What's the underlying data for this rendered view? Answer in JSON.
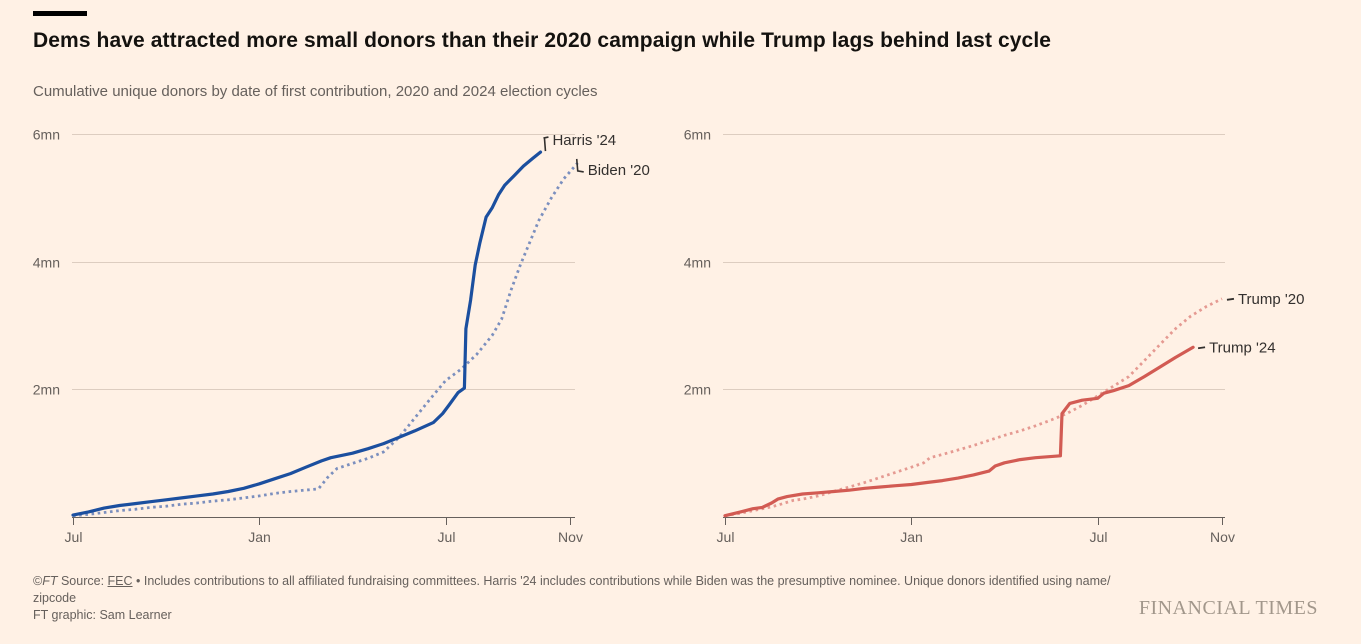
{
  "header": {
    "title": "Dems have attracted more small donors than their 2020 campaign while Trump lags behind last cycle",
    "subtitle": "Cumulative unique donors by date of first contribution, 2020 and 2024 election cycles"
  },
  "colors": {
    "background": "#fff1e5",
    "gridline": "#ddcdc0",
    "axis": "#66605c",
    "axis_text": "#66605c",
    "annotation_text": "#33302e",
    "harris_24": "#1b4f9f",
    "biden_20": "#7b8fbe",
    "trump_24": "#d25b53",
    "trump_20": "#e59a92",
    "wordmark": "#a2978b"
  },
  "chart_data": [
    {
      "type": "line",
      "region": "Democrats panel",
      "x_unit": "months since July of year before election (Jul 2023 / Jul 2019 aligned)",
      "x_ticks": [
        {
          "label": "Jul",
          "month": 0
        },
        {
          "label": "Jan",
          "month": 6
        },
        {
          "label": "Jul",
          "month": 12
        },
        {
          "label": "Nov",
          "month": 16
        }
      ],
      "y_ticks": [
        {
          "label": "2mn",
          "value": 2
        },
        {
          "label": "4mn",
          "value": 4
        },
        {
          "label": "6mn",
          "value": 6
        }
      ],
      "y_range": [
        0,
        6.2
      ],
      "grid": true,
      "legend_position": "end-of-line labels",
      "series": [
        {
          "name": "Harris '24",
          "style": "solid",
          "color": "#1b4f9f",
          "unit": "million unique donors",
          "points": [
            [
              0,
              0.03
            ],
            [
              0.5,
              0.08
            ],
            [
              1,
              0.14
            ],
            [
              1.5,
              0.18
            ],
            [
              2,
              0.21
            ],
            [
              2.5,
              0.24
            ],
            [
              3,
              0.27
            ],
            [
              3.5,
              0.3
            ],
            [
              4,
              0.33
            ],
            [
              4.5,
              0.36
            ],
            [
              5,
              0.4
            ],
            [
              5.5,
              0.45
            ],
            [
              6,
              0.52
            ],
            [
              6.5,
              0.6
            ],
            [
              7,
              0.68
            ],
            [
              7.5,
              0.78
            ],
            [
              8,
              0.88
            ],
            [
              8.3,
              0.93
            ],
            [
              9,
              1.0
            ],
            [
              9.5,
              1.07
            ],
            [
              10,
              1.15
            ],
            [
              10.5,
              1.25
            ],
            [
              11,
              1.35
            ],
            [
              11.6,
              1.48
            ],
            [
              11.9,
              1.62
            ],
            [
              12.1,
              1.75
            ],
            [
              12.4,
              1.95
            ],
            [
              12.6,
              2.02
            ],
            [
              12.65,
              2.95
            ],
            [
              12.8,
              3.4
            ],
            [
              12.95,
              3.95
            ],
            [
              13.1,
              4.3
            ],
            [
              13.3,
              4.7
            ],
            [
              13.5,
              4.85
            ],
            [
              13.7,
              5.05
            ],
            [
              13.9,
              5.2
            ],
            [
              14.2,
              5.35
            ],
            [
              14.5,
              5.5
            ],
            [
              14.8,
              5.62
            ],
            [
              15.05,
              5.72
            ]
          ]
        },
        {
          "name": "Biden '20",
          "style": "dashed",
          "color": "#7b8fbe",
          "unit": "million unique donors",
          "points": [
            [
              0,
              0.02
            ],
            [
              0.5,
              0.04
            ],
            [
              1,
              0.07
            ],
            [
              1.5,
              0.1
            ],
            [
              2,
              0.12
            ],
            [
              2.5,
              0.15
            ],
            [
              3,
              0.17
            ],
            [
              3.5,
              0.2
            ],
            [
              4,
              0.22
            ],
            [
              4.5,
              0.25
            ],
            [
              5,
              0.27
            ],
            [
              5.5,
              0.3
            ],
            [
              6,
              0.33
            ],
            [
              6.5,
              0.37
            ],
            [
              7,
              0.4
            ],
            [
              7.9,
              0.44
            ],
            [
              8.2,
              0.62
            ],
            [
              8.5,
              0.76
            ],
            [
              9,
              0.84
            ],
            [
              9.5,
              0.92
            ],
            [
              10,
              1.02
            ],
            [
              10.5,
              1.25
            ],
            [
              11,
              1.55
            ],
            [
              11.5,
              1.85
            ],
            [
              12,
              2.14
            ],
            [
              12.5,
              2.32
            ],
            [
              13,
              2.55
            ],
            [
              13.5,
              2.85
            ],
            [
              13.8,
              3.1
            ],
            [
              14.1,
              3.55
            ],
            [
              14.4,
              3.95
            ],
            [
              14.7,
              4.3
            ],
            [
              15,
              4.65
            ],
            [
              15.4,
              5.0
            ],
            [
              15.8,
              5.3
            ],
            [
              16.25,
              5.55
            ]
          ]
        }
      ]
    },
    {
      "type": "line",
      "region": "Trump panel",
      "x_unit": "months since July of year before election (Jul 2023 / Jul 2019 aligned)",
      "x_ticks": [
        {
          "label": "Jul",
          "month": 0
        },
        {
          "label": "Jan",
          "month": 6
        },
        {
          "label": "Jul",
          "month": 12
        },
        {
          "label": "Nov",
          "month": 16
        }
      ],
      "y_ticks": [
        {
          "label": "2mn",
          "value": 2
        },
        {
          "label": "4mn",
          "value": 4
        },
        {
          "label": "6mn",
          "value": 6
        }
      ],
      "y_range": [
        0,
        6.2
      ],
      "grid": true,
      "legend_position": "end-of-line labels",
      "series": [
        {
          "name": "Trump '20",
          "style": "dashed",
          "color": "#e59a92",
          "unit": "million unique donors",
          "points": [
            [
              0,
              0.02
            ],
            [
              0.5,
              0.06
            ],
            [
              1,
              0.11
            ],
            [
              1.5,
              0.16
            ],
            [
              1.8,
              0.2
            ],
            [
              2.2,
              0.26
            ],
            [
              2.5,
              0.28
            ],
            [
              3,
              0.33
            ],
            [
              3.5,
              0.4
            ],
            [
              4,
              0.47
            ],
            [
              4.5,
              0.54
            ],
            [
              5,
              0.62
            ],
            [
              5.5,
              0.7
            ],
            [
              6,
              0.78
            ],
            [
              6.4,
              0.85
            ],
            [
              6.6,
              0.93
            ],
            [
              7,
              0.98
            ],
            [
              7.5,
              1.05
            ],
            [
              8,
              1.12
            ],
            [
              8.5,
              1.2
            ],
            [
              9,
              1.28
            ],
            [
              9.5,
              1.35
            ],
            [
              10,
              1.43
            ],
            [
              10.5,
              1.52
            ],
            [
              11,
              1.62
            ],
            [
              11.5,
              1.75
            ],
            [
              12,
              1.9
            ],
            [
              12.5,
              2.05
            ],
            [
              13,
              2.2
            ],
            [
              13.5,
              2.45
            ],
            [
              14,
              2.7
            ],
            [
              14.5,
              2.95
            ],
            [
              15,
              3.15
            ],
            [
              15.5,
              3.3
            ],
            [
              16,
              3.42
            ]
          ]
        },
        {
          "name": "Trump '24",
          "style": "solid",
          "color": "#d25b53",
          "unit": "million unique donors",
          "points": [
            [
              0,
              0.02
            ],
            [
              0.5,
              0.08
            ],
            [
              0.9,
              0.13
            ],
            [
              1.2,
              0.15
            ],
            [
              1.5,
              0.22
            ],
            [
              1.7,
              0.28
            ],
            [
              2,
              0.32
            ],
            [
              2.5,
              0.36
            ],
            [
              3,
              0.38
            ],
            [
              3.5,
              0.4
            ],
            [
              4,
              0.42
            ],
            [
              4.5,
              0.45
            ],
            [
              5,
              0.47
            ],
            [
              5.5,
              0.49
            ],
            [
              6,
              0.51
            ],
            [
              6.5,
              0.54
            ],
            [
              7,
              0.57
            ],
            [
              7.5,
              0.61
            ],
            [
              8,
              0.66
            ],
            [
              8.5,
              0.72
            ],
            [
              8.7,
              0.8
            ],
            [
              9,
              0.85
            ],
            [
              9.5,
              0.9
            ],
            [
              10,
              0.93
            ],
            [
              10.8,
              0.96
            ],
            [
              10.85,
              1.62
            ],
            [
              11.1,
              1.78
            ],
            [
              11.5,
              1.83
            ],
            [
              12,
              1.86
            ],
            [
              12.2,
              1.94
            ],
            [
              12.5,
              1.98
            ],
            [
              13,
              2.06
            ],
            [
              13.5,
              2.2
            ],
            [
              14,
              2.35
            ],
            [
              14.5,
              2.5
            ],
            [
              15.07,
              2.66
            ]
          ]
        }
      ]
    }
  ],
  "footer": {
    "copyright_symbol": "©",
    "copyright_ft": "FT",
    "source_label": " Source: ",
    "source_link": "FEC",
    "note_line1": " • Includes contributions to all affiliated fundraising committees. Harris '24 includes contributions while Biden was the presumptive nominee. Unique donors identified using name/",
    "note_line2": "zipcode",
    "credit": "FT graphic: Sam Learner"
  },
  "wordmark": "FINANCIAL TIMES"
}
